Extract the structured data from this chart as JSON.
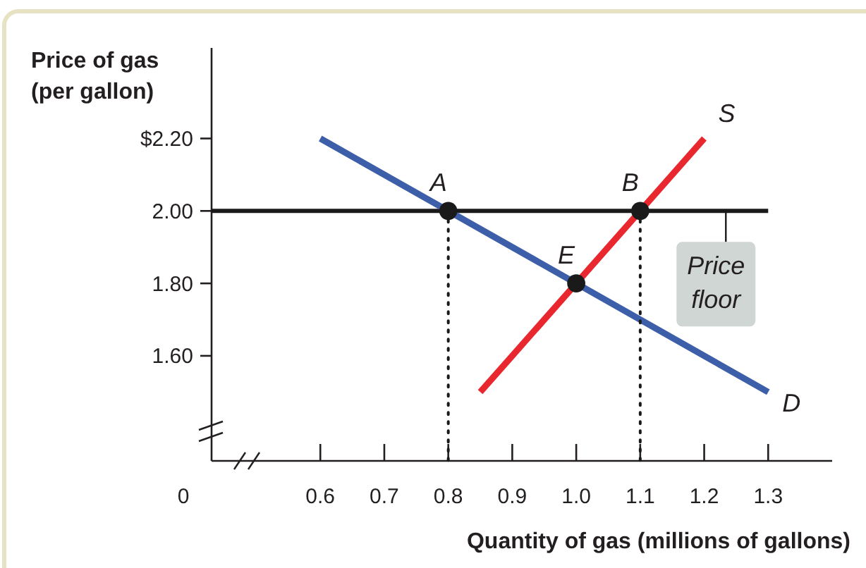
{
  "chart_data": {
    "type": "line",
    "xlabel": "Quantity of gas (millions of gallons)",
    "ylabel": "Price of gas\n(per gallon)",
    "xlim": [
      0.43,
      1.4
    ],
    "ylim": [
      1.31,
      2.45
    ],
    "xticks": [
      0.6,
      0.7,
      0.8,
      0.9,
      {
        "value": 1,
        "label": "1.0"
      },
      1.1,
      1.2,
      1.3
    ],
    "yticks": [
      {
        "value": 2.2,
        "label": "$2.20"
      },
      {
        "value": 2,
        "label": "2.00"
      },
      {
        "value": 1.8,
        "label": "1.80"
      },
      {
        "value": 1.6,
        "label": "1.60"
      }
    ],
    "series": [
      {
        "name": "D",
        "color": "#3d5ea8",
        "x": [
          0.6,
          1.3
        ],
        "values": [
          2.2,
          1.5
        ]
      },
      {
        "name": "S",
        "color": "#e8272f",
        "x": [
          0.85,
          1.2
        ],
        "values": [
          1.5,
          2.2
        ]
      },
      {
        "type": "scatter",
        "marker": "circle",
        "color": "#1a1a1a",
        "x": [
          0.8,
          1.1,
          1.0
        ],
        "values": [
          2.0,
          2.0,
          1.8
        ]
      },
      {
        "type": "line",
        "line_style": "dotted",
        "color": "#1a1a1a",
        "x": [
          0.8,
          0.8
        ],
        "values": [
          2.0,
          1.31
        ]
      },
      {
        "type": "line",
        "line_style": "dotted",
        "color": "#1a1a1a",
        "x": [
          1.1,
          1.1
        ],
        "values": [
          2.0,
          1.31
        ]
      }
    ],
    "ref_lines": [
      {
        "axis": "y",
        "value": 2.0,
        "label": "Price floor",
        "color": "#1a1a1a"
      }
    ],
    "annotations": [
      "0",
      {
        "text": "A",
        "x": 0.8,
        "y": 2.0
      },
      {
        "text": "B",
        "x": 1.1,
        "y": 2.0
      },
      {
        "text": "E",
        "x": 1.0,
        "y": 1.8
      }
    ]
  }
}
